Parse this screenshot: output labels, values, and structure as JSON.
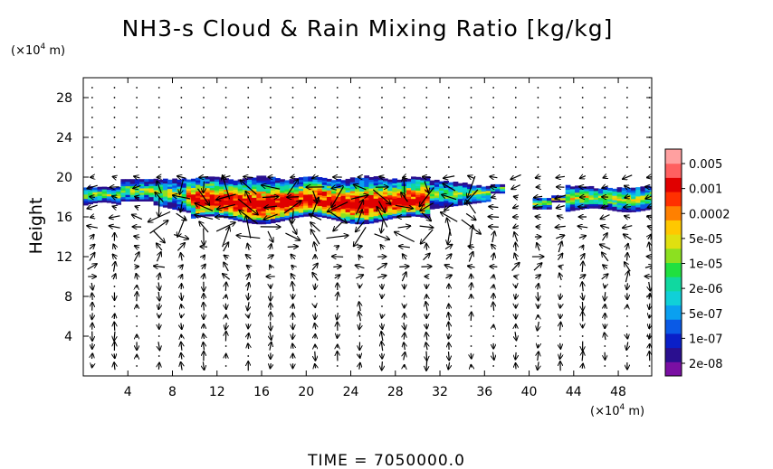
{
  "chart_data": {
    "type": "heatmap",
    "title": "NH3-s Cloud & Rain Mixing Ratio [kg/kg]",
    "ylabel": "Height",
    "x_unit": "(×10",
    "x_unit_exp": "4",
    "x_unit_tail": " m)",
    "y_unit": "(×10",
    "y_unit_exp": "4",
    "y_unit_tail": " m)",
    "xlim": [
      0,
      51
    ],
    "ylim": [
      0,
      30
    ],
    "x_ticks": [
      "4",
      "8",
      "12",
      "16",
      "20",
      "24",
      "28",
      "32",
      "36",
      "40",
      "44",
      "48"
    ],
    "y_ticks": [
      "4",
      "8",
      "12",
      "16",
      "20",
      "24",
      "28"
    ],
    "time_label": "TIME  =  7050000.0",
    "colorbar": {
      "labels": [
        "0.005",
        "0.001",
        "0.0002",
        "5e-05",
        "1e-05",
        "2e-06",
        "5e-07",
        "1e-07",
        "2e-08"
      ],
      "colors": [
        "#7a0fa3",
        "#2a0f8f",
        "#0a1fc8",
        "#0a5ae6",
        "#0aa0f0",
        "#10d0d8",
        "#10d8a0",
        "#20e040",
        "#8ce020",
        "#e0e010",
        "#ffc800",
        "#ff8000",
        "#ff3000",
        "#e00000",
        "#ff6060",
        "#ffa0a0"
      ]
    },
    "cloud_layer": {
      "x_range": [
        0,
        51
      ],
      "z_range": [
        16,
        20
      ],
      "core_level": "17-19",
      "gap_x": [
        37.5,
        39.5
      ]
    },
    "vector_field": "wind arrows, strongest near 10-34 at heights 14-20"
  }
}
